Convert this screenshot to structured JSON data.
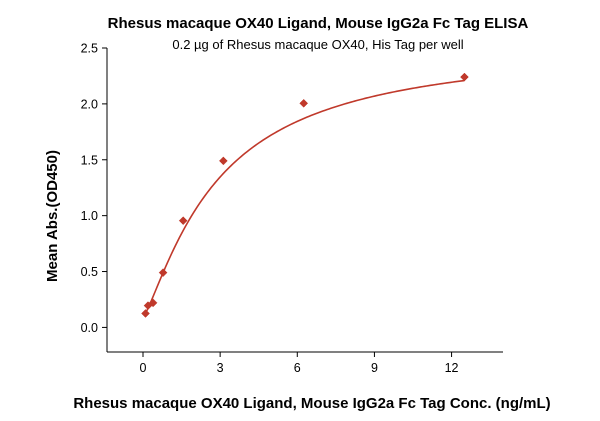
{
  "chart_data": {
    "type": "scatter",
    "title": "Rhesus macaque OX40 Ligand, Mouse IgG2a Fc Tag ELISA",
    "subtitle": "0.2 µg of Rhesus macaque OX40, His Tag per well",
    "xlabel": "Rhesus macaque OX40 Ligand, Mouse IgG2a Fc Tag Conc. (ng/mL)",
    "ylabel": "Mean Abs.(OD450)",
    "xlim": [
      -1.4,
      14
    ],
    "ylim": [
      -0.22,
      2.5
    ],
    "xticks": [
      0,
      3,
      6,
      9,
      12
    ],
    "yticks": [
      0.0,
      0.5,
      1.0,
      1.5,
      2.0,
      2.5
    ],
    "xtick_labels": [
      "0",
      "3",
      "6",
      "9",
      "12"
    ],
    "ytick_labels": [
      "0.0",
      "0.5",
      "1.0",
      "1.5",
      "2.0",
      "2.5"
    ],
    "grid": false,
    "series": [
      {
        "marker": "diamond",
        "color": "#C0392B",
        "x": [
          0.098,
          0.195,
          0.391,
          0.781,
          1.563,
          3.125,
          6.25,
          12.5
        ],
        "y": [
          0.125,
          0.195,
          0.22,
          0.49,
          0.955,
          1.49,
          2.005,
          2.24
        ]
      }
    ],
    "fit_curve": {
      "color": "#C0392B",
      "model": "4PL",
      "bottom": 0.09,
      "top": 2.55,
      "ec50": 2.9,
      "hill": 1.25,
      "x_range": [
        0.098,
        12.5
      ]
    }
  }
}
